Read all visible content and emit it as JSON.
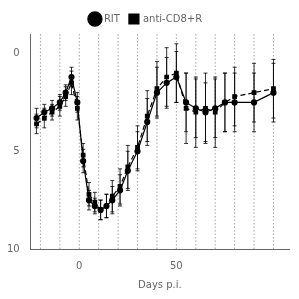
{
  "chart_data": {
    "type": "line",
    "xlabel": "Days p.i.",
    "xlim": [
      -25,
      108
    ],
    "xticks": [
      0,
      50
    ],
    "ylim": [
      10,
      -1
    ],
    "yticks": [
      0,
      5,
      10
    ],
    "grid": false,
    "legend": "top",
    "vlines": [
      -20,
      -10,
      0,
      10,
      20,
      30,
      40,
      50,
      60,
      70,
      80,
      90,
      100
    ],
    "x": [
      -22,
      -18,
      -14,
      -10,
      -7,
      -4,
      -1,
      2,
      5,
      8,
      11,
      14,
      17,
      21,
      25,
      30,
      35,
      40,
      45,
      50,
      55,
      60,
      65,
      70,
      75,
      80,
      90,
      100
    ],
    "series": [
      {
        "name": "RIT",
        "color": "#000000",
        "marker": "circle",
        "line_style": "solid",
        "values": [
          3.3,
          3.0,
          2.8,
          2.5,
          2.0,
          1.2,
          2.5,
          5.5,
          7.5,
          7.8,
          8.0,
          7.8,
          7.5,
          7.0,
          6.0,
          5.0,
          3.5,
          2.0,
          1.5,
          1.2,
          2.5,
          2.8,
          3.0,
          2.8,
          2.5,
          2.5,
          2.5,
          2.0
        ],
        "errors": [
          0.5,
          0.4,
          0.4,
          0.4,
          0.4,
          0.5,
          0.5,
          0.6,
          0.5,
          0.4,
          0.5,
          0.6,
          0.7,
          0.8,
          1.0,
          1.0,
          1.2,
          1.3,
          1.3,
          1.3,
          1.5,
          1.5,
          1.5,
          1.5,
          1.5,
          1.5,
          1.5,
          1.5
        ]
      },
      {
        "name": "anti-CD8+R",
        "color": "#000000",
        "marker": "square",
        "line_style": "dashed",
        "values": [
          3.6,
          3.3,
          3.0,
          2.7,
          2.2,
          1.5,
          2.8,
          5.2,
          7.2,
          7.6,
          8.0,
          7.8,
          7.3,
          6.8,
          5.8,
          4.8,
          3.2,
          1.8,
          1.2,
          1.0,
          2.8,
          3.0,
          2.8,
          3.0,
          2.5,
          2.2,
          2.0,
          1.8
        ],
        "errors": [
          0.5,
          0.5,
          0.4,
          0.5,
          0.5,
          0.6,
          0.6,
          0.6,
          0.6,
          0.5,
          0.5,
          0.6,
          0.8,
          0.9,
          1.1,
          1.1,
          1.3,
          1.4,
          1.5,
          1.5,
          1.8,
          1.8,
          1.8,
          1.8,
          1.5,
          1.5,
          1.5,
          1.5
        ]
      }
    ]
  }
}
